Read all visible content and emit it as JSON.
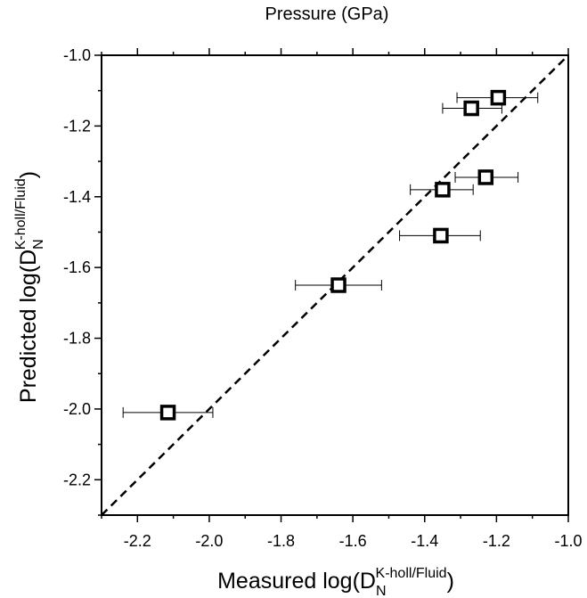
{
  "chart_data": {
    "type": "scatter",
    "top_title": "Pressure (GPa)",
    "xlabel": {
      "pre": "Measured log(D",
      "sub": "N",
      "sup": "K-holl/Fluid",
      "post": ")"
    },
    "ylabel": {
      "pre": "Predicted log(D",
      "sub": "N",
      "sup": "K-holl/Fluid",
      "post": ")"
    },
    "xlim": [
      -2.3,
      -1.0
    ],
    "ylim": [
      -2.3,
      -1.0
    ],
    "x_ticks": [
      -2.2,
      -2.0,
      -1.8,
      -1.6,
      -1.4,
      -1.2,
      -1.0
    ],
    "x_tick_labels": [
      "-2.2",
      "-2.0",
      "-1.8",
      "-1.6",
      "-1.4",
      "-1.2",
      "-1.0"
    ],
    "y_ticks": [
      -2.2,
      -2.0,
      -1.8,
      -1.6,
      -1.4,
      -1.2,
      -1.0
    ],
    "y_tick_labels": [
      "-2.2",
      "-2.0",
      "-1.8",
      "-1.6",
      "-1.4",
      "-1.2",
      "-1.0"
    ],
    "minor_tick_step": 0.1,
    "grid": false,
    "reference_line": {
      "style": "dashed",
      "from": [
        -2.3,
        -2.3
      ],
      "to": [
        -1.0,
        -1.0
      ]
    },
    "marker": "open-square",
    "points": [
      {
        "x": -2.115,
        "y": -2.01,
        "xerr_low": -2.24,
        "xerr_high": -1.99
      },
      {
        "x": -1.64,
        "y": -1.65,
        "xerr_low": -1.76,
        "xerr_high": -1.52
      },
      {
        "x": -1.355,
        "y": -1.51,
        "xerr_low": -1.47,
        "xerr_high": -1.245
      },
      {
        "x": -1.35,
        "y": -1.38,
        "xerr_low": -1.44,
        "xerr_high": -1.265
      },
      {
        "x": -1.23,
        "y": -1.345,
        "xerr_low": -1.315,
        "xerr_high": -1.14
      },
      {
        "x": -1.27,
        "y": -1.15,
        "xerr_low": -1.35,
        "xerr_high": -1.185
      },
      {
        "x": -1.195,
        "y": -1.12,
        "xerr_low": -1.31,
        "xerr_high": -1.085
      }
    ]
  }
}
